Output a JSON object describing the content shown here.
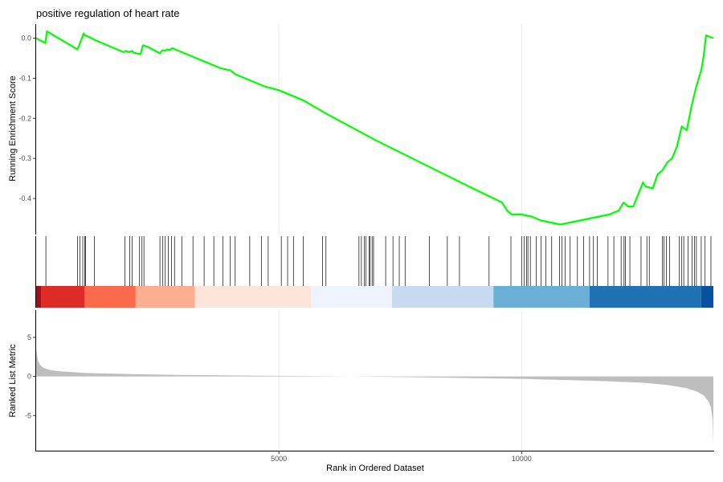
{
  "chart_data": {
    "type": "line",
    "title": "positive regulation of heart rate",
    "xlabel": "Rank in Ordered Dataset",
    "xlim": [
      0,
      13950
    ],
    "x_ticks": [
      5000,
      10000
    ],
    "series_color": "#00ff00",
    "rug_color": "#000000",
    "metric_color": "#bebebe",
    "panels": [
      {
        "name": "running-es",
        "ylabel": "Running Enrichment Score",
        "ylim": [
          -0.49,
          0.035
        ],
        "y_ticks": [
          0.0,
          -0.1,
          -0.2,
          -0.3,
          -0.4
        ],
        "y_tick_labels": [
          "0.0",
          "-0.1",
          "-0.2",
          "-0.3",
          "-0.4"
        ],
        "series": [
          {
            "x": [
              0,
              190,
              220,
              850,
              880,
              980,
              1000,
              1220,
              1800,
              1850,
              1900,
              1980,
              2000,
              2150,
              2200,
              2300,
              2550,
              2600,
              2650,
              2700,
              2750,
              2800,
              3000,
              3300,
              3500,
              3700,
              3800,
              4000,
              4100,
              4500,
              4700,
              5000,
              5500,
              6000,
              7000,
              8000,
              9000,
              9600,
              9700,
              9750,
              9800,
              10000,
              10200,
              10400,
              10600,
              10800,
              11000,
              11200,
              11400,
              11600,
              11800,
              12000,
              12100,
              12200,
              12300,
              12500,
              12550,
              12700,
              12800,
              12900,
              13000,
              13100,
              13200,
              13300,
              13400,
              13500,
              13600,
              13700,
              13750,
              13800,
              13950
            ],
            "y": [
              0.0,
              -0.012,
              0.017,
              -0.028,
              -0.02,
              0.012,
              0.008,
              -0.005,
              -0.035,
              -0.032,
              -0.035,
              -0.032,
              -0.036,
              -0.04,
              -0.018,
              -0.022,
              -0.038,
              -0.03,
              -0.032,
              -0.028,
              -0.03,
              -0.025,
              -0.035,
              -0.05,
              -0.06,
              -0.07,
              -0.075,
              -0.08,
              -0.09,
              -0.11,
              -0.12,
              -0.13,
              -0.155,
              -0.19,
              -0.255,
              -0.315,
              -0.375,
              -0.41,
              -0.43,
              -0.435,
              -0.44,
              -0.44,
              -0.445,
              -0.455,
              -0.46,
              -0.465,
              -0.46,
              -0.455,
              -0.45,
              -0.445,
              -0.44,
              -0.43,
              -0.41,
              -0.42,
              -0.42,
              -0.36,
              -0.37,
              -0.375,
              -0.34,
              -0.33,
              -0.31,
              -0.3,
              -0.27,
              -0.22,
              -0.23,
              -0.17,
              -0.12,
              -0.08,
              -0.045,
              0.007,
              0.0
            ]
          }
        ]
      },
      {
        "name": "ranked-metric",
        "ylabel": "Ranked List Metric",
        "ylim": [
          -9.5,
          8.5
        ],
        "y_ticks": [
          5,
          0,
          -5
        ],
        "y_tick_labels": [
          "5",
          "0",
          "-5"
        ],
        "series": [
          {
            "x": [
              0,
              15,
              40,
              80,
              150,
              300,
              500,
              1000,
              2000,
              3000,
              5000,
              6500,
              8000,
              10000,
              11500,
              12500,
              13000,
              13400,
              13600,
              13750,
              13850,
              13900,
              13935,
              13950
            ],
            "y": [
              3.6,
              2.8,
              2.0,
              1.5,
              1.1,
              0.8,
              0.65,
              0.45,
              0.3,
              0.2,
              0.08,
              0.0,
              -0.12,
              -0.3,
              -0.55,
              -0.8,
              -1.1,
              -1.5,
              -1.9,
              -2.4,
              -3.2,
              -4.0,
              -5.5,
              -8.6
            ]
          }
        ]
      }
    ],
    "hits": [
      200,
      850,
      900,
      960,
      1000,
      1020,
      1200,
      1830,
      1930,
      1980,
      2130,
      2180,
      2220,
      2550,
      2610,
      2660,
      2720,
      2790,
      2850,
      3000,
      3230,
      3460,
      3660,
      3850,
      4000,
      4100,
      4400,
      4640,
      4780,
      5050,
      5180,
      5300,
      5500,
      5900,
      5970,
      6650,
      6700,
      6760,
      6790,
      6860,
      6880,
      6920,
      6950,
      7200,
      7350,
      7480,
      7600,
      8100,
      8470,
      8720,
      9330,
      9780,
      10000,
      10050,
      10100,
      10130,
      10180,
      10300,
      10400,
      10500,
      10620,
      10780,
      10830,
      10900,
      11000,
      11150,
      11280,
      11400,
      11480,
      11560,
      11780,
      11900,
      12050,
      12110,
      12140,
      12230,
      12460,
      12580,
      12630,
      12900,
      12930,
      12980,
      13050,
      13250,
      13300,
      13340,
      13430,
      13510,
      13560,
      13600,
      13700,
      13780,
      13900
    ],
    "color_bands": [
      {
        "from": 0,
        "to": 100,
        "color": "#a50f15"
      },
      {
        "from": 100,
        "to": 1000,
        "color": "#de2d26"
      },
      {
        "from": 1000,
        "to": 2050,
        "color": "#fb6a4a"
      },
      {
        "from": 2050,
        "to": 3270,
        "color": "#fcae91"
      },
      {
        "from": 3270,
        "to": 5660,
        "color": "#fee5d9"
      },
      {
        "from": 5660,
        "to": 7330,
        "color": "#eff3ff"
      },
      {
        "from": 7330,
        "to": 9420,
        "color": "#c6dbef"
      },
      {
        "from": 9420,
        "to": 11400,
        "color": "#6baed6"
      },
      {
        "from": 11400,
        "to": 13700,
        "color": "#2171b5"
      },
      {
        "from": 13700,
        "to": 13950,
        "color": "#08519c"
      }
    ]
  }
}
